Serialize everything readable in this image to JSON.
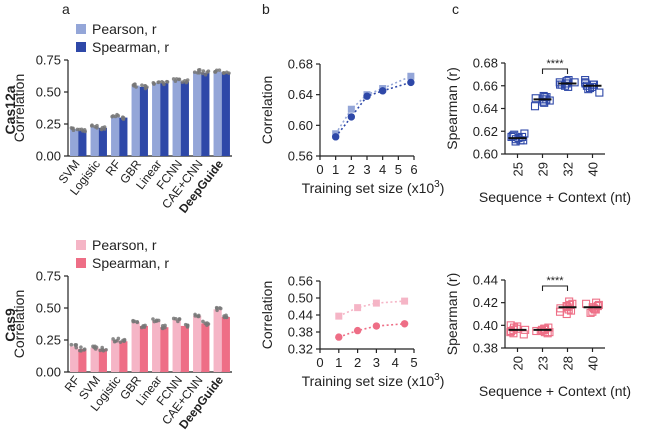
{
  "panel_labels": [
    "a",
    "b",
    "c"
  ],
  "row_labels": [
    "Cas12a",
    "Cas9"
  ],
  "colors": {
    "cas12a_pearson": "#94a6d8",
    "cas12a_spearman": "#2e48a8",
    "cas9_pearson": "#f5b5c6",
    "cas9_spearman": "#ee6e86",
    "dots": "#777777",
    "axis": "#222222"
  },
  "chart_data": [
    {
      "id": "a-cas12a",
      "type": "bar",
      "categories": [
        "SVM",
        "Logistic",
        "RF",
        "GBR",
        "Linear",
        "FCNN",
        "CAE+CNN",
        "DeepGuide"
      ],
      "bold_category": "DeepGuide",
      "series": [
        {
          "name": "Pearson, r",
          "values": [
            0.21,
            0.23,
            0.31,
            0.55,
            0.57,
            0.59,
            0.66,
            0.66
          ]
        },
        {
          "name": "Spearman, r",
          "values": [
            0.2,
            0.22,
            0.3,
            0.54,
            0.57,
            0.58,
            0.65,
            0.65
          ]
        }
      ],
      "ylabel": "Correlation",
      "ylim": [
        0,
        0.75
      ],
      "yticks": [
        "0.00",
        "0.25",
        "0.50",
        "0.75"
      ],
      "legend": "top-left"
    },
    {
      "id": "a-cas9",
      "type": "bar",
      "categories": [
        "RF",
        "SVM",
        "Logistic",
        "GBR",
        "Linear",
        "FCNN",
        "CAE+CNN",
        "DeepGuide"
      ],
      "bold_category": "DeepGuide",
      "series": [
        {
          "name": "Pearson, r",
          "values": [
            0.2,
            0.19,
            0.25,
            0.39,
            0.4,
            0.41,
            0.44,
            0.49
          ]
        },
        {
          "name": "Spearman, r",
          "values": [
            0.18,
            0.18,
            0.24,
            0.36,
            0.35,
            0.36,
            0.38,
            0.43
          ]
        }
      ],
      "ylabel": "Correlation",
      "ylim": [
        0,
        0.75
      ],
      "yticks": [
        "0.00",
        "0.25",
        "0.50",
        "0.75"
      ],
      "legend": "top-left"
    },
    {
      "id": "b-cas12a",
      "type": "line",
      "series": [
        {
          "name": "Pearson",
          "marker": "square",
          "x": [
            1,
            2,
            3,
            4,
            5.8
          ],
          "y": [
            0.589,
            0.621,
            0.64,
            0.648,
            0.664
          ]
        },
        {
          "name": "Spearman",
          "marker": "circle",
          "x": [
            1,
            2,
            3,
            4,
            5.8
          ],
          "y": [
            0.585,
            0.611,
            0.638,
            0.645,
            0.656
          ]
        }
      ],
      "ylabel": "Correlation",
      "xlabel": "Training set size (x10",
      "xlabel_sup": "3",
      "xlabel_end": ")",
      "xlim": [
        0,
        6
      ],
      "ylim": [
        0.56,
        0.68
      ],
      "xticks": [
        "0",
        "1",
        "2",
        "3",
        "4",
        "5",
        "6"
      ],
      "yticks": [
        "0.56",
        "0.60",
        "0.64",
        "0.68"
      ]
    },
    {
      "id": "b-cas9",
      "type": "line",
      "series": [
        {
          "name": "Pearson",
          "marker": "square",
          "x": [
            1,
            2,
            3,
            4.5
          ],
          "y": [
            0.436,
            0.466,
            0.482,
            0.489
          ]
        },
        {
          "name": "Spearman",
          "marker": "circle",
          "x": [
            1,
            2,
            3,
            4.5
          ],
          "y": [
            0.362,
            0.385,
            0.401,
            0.409
          ]
        }
      ],
      "ylabel": "Correlation",
      "xlabel": "Training set size (x10",
      "xlabel_sup": "3",
      "xlabel_end": ")",
      "xlim": [
        0,
        5
      ],
      "ylim": [
        0.32,
        0.56
      ],
      "xticks": [
        "0",
        "1",
        "2",
        "3",
        "4",
        "5"
      ],
      "yticks": [
        "0.32",
        "0.38",
        "0.44",
        "0.50",
        "0.56"
      ]
    },
    {
      "id": "c-cas12a",
      "type": "scatter",
      "categories": [
        "25",
        "29",
        "32",
        "40"
      ],
      "groups": [
        [
          0.611,
          0.612,
          0.613,
          0.614,
          0.615,
          0.616,
          0.617,
          0.612,
          0.615,
          0.618
        ],
        [
          0.642,
          0.645,
          0.647,
          0.648,
          0.649,
          0.65,
          0.651,
          0.646,
          0.648,
          0.65
        ],
        [
          0.659,
          0.66,
          0.661,
          0.662,
          0.663,
          0.664,
          0.665,
          0.661,
          0.663,
          0.662
        ],
        [
          0.654,
          0.657,
          0.659,
          0.66,
          0.661,
          0.662,
          0.663,
          0.658,
          0.661,
          0.665
        ]
      ],
      "means": [
        0.614,
        0.648,
        0.662,
        0.66
      ],
      "significance": {
        "from": "29",
        "to": "32",
        "label": "****"
      },
      "ylabel": "Spearman (r)",
      "xlabel": "Sequence + Context (nt)",
      "ylim": [
        0.6,
        0.68
      ],
      "yticks": [
        "0.60",
        "0.62",
        "0.64",
        "0.66",
        "0.68"
      ]
    },
    {
      "id": "c-cas9",
      "type": "scatter",
      "categories": [
        "20",
        "23",
        "28",
        "40"
      ],
      "groups": [
        [
          0.392,
          0.394,
          0.395,
          0.396,
          0.397,
          0.398,
          0.399,
          0.393,
          0.396,
          0.4
        ],
        [
          0.393,
          0.394,
          0.395,
          0.396,
          0.397,
          0.398,
          0.395,
          0.396,
          0.394,
          0.397
        ],
        [
          0.41,
          0.412,
          0.414,
          0.415,
          0.416,
          0.417,
          0.418,
          0.419,
          0.421,
          0.413
        ],
        [
          0.411,
          0.412,
          0.414,
          0.415,
          0.416,
          0.417,
          0.418,
          0.419,
          0.42,
          0.414
        ]
      ],
      "means": [
        0.396,
        0.396,
        0.416,
        0.416
      ],
      "significance": {
        "from": "23",
        "to": "28",
        "label": "****"
      },
      "ylabel": "Spearman (r)",
      "xlabel": "Sequence + Context (nt)",
      "ylim": [
        0.38,
        0.44
      ],
      "yticks": [
        "0.38",
        "0.40",
        "0.42",
        "0.44"
      ]
    }
  ]
}
